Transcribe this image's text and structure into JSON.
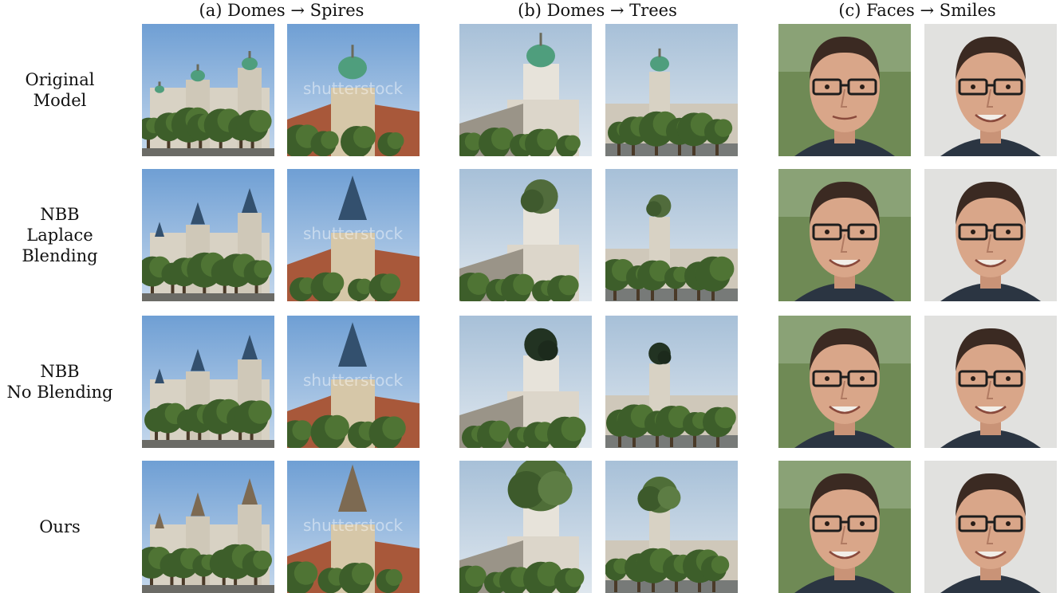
{
  "figure": {
    "column_groups": [
      {
        "title": "(a) Domes → Spires",
        "scene": "church"
      },
      {
        "title": "(b) Domes → Trees",
        "scene": "tower"
      },
      {
        "title": "(c) Faces → Smiles",
        "scene": "face"
      }
    ],
    "rows": [
      {
        "label": [
          "Original Model"
        ],
        "variant": "original"
      },
      {
        "label": [
          "NBB",
          "Laplace",
          "Blending"
        ],
        "variant": "nbb-laplace"
      },
      {
        "label": [
          "NBB",
          "No Blending"
        ],
        "variant": "nbb-noblend"
      },
      {
        "label": [
          "Ours"
        ],
        "variant": "ours"
      }
    ],
    "watermark": "shutterstock",
    "colors": {
      "sky": "#8fb4da",
      "sky_pale": "#c9d6e2",
      "building": "#d8d2c4",
      "roof": "#a8583a",
      "dome_green": "#4f9e7d",
      "spire_blue": "#33506e",
      "tree": "#3d5e2a",
      "face_bg": "#6f8a55",
      "face_bg_light": "#e1e1df",
      "skin": "#d9a689",
      "hair": "#3b2a22",
      "shirt": "#2b3542"
    }
  }
}
